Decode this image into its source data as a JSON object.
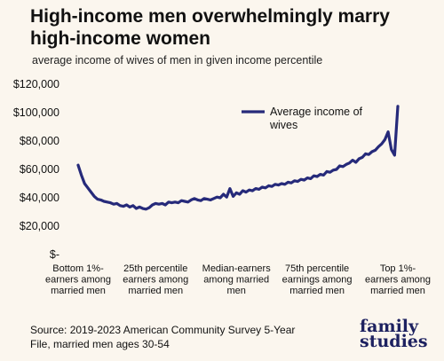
{
  "title": "High-income men overwhelmingly marry high-income women",
  "subtitle": "average income of wives of men in given income percentile",
  "source": "Source: 2019-2023 American Community Survey 5-Year File, married men ages 30-54",
  "brand": {
    "line1": "family",
    "line2": "studies"
  },
  "colors": {
    "background": "#fbf6ee",
    "line": "#262a7a",
    "brand": "#1d2160"
  },
  "chart_data": {
    "type": "line",
    "title": "High-income men overwhelmingly marry high-income women",
    "subtitle": "average income of wives of men in given income percentile",
    "xlabel": "",
    "ylabel": "",
    "ylim": [
      0,
      120000
    ],
    "yticks": [
      0,
      20000,
      40000,
      60000,
      80000,
      100000,
      120000
    ],
    "ytick_labels": [
      "$-",
      "$20,000",
      "$40,000",
      "$60,000",
      "$80,000",
      "$100,000",
      "$120,000"
    ],
    "x_categories": [
      {
        "x": 1,
        "label": [
          "Bottom 1%-",
          "earners among",
          "married men"
        ]
      },
      {
        "x": 25,
        "label": [
          "25th percentile",
          "earners among",
          "married men"
        ]
      },
      {
        "x": 50,
        "label": [
          "Median-earners",
          "among married",
          "men"
        ]
      },
      {
        "x": 75,
        "label": [
          "75th percentile",
          "earnings among",
          "married men"
        ]
      },
      {
        "x": 100,
        "label": [
          "Top 1%-",
          "earners among",
          "married men"
        ]
      }
    ],
    "grid": false,
    "legend": {
      "placement": "top-center",
      "entries": [
        "Average income of wives"
      ]
    },
    "series": [
      {
        "name": "Average income of wives",
        "color": "#262a7a",
        "x": [
          1,
          2,
          3,
          4,
          5,
          6,
          7,
          8,
          9,
          10,
          11,
          12,
          13,
          14,
          15,
          16,
          17,
          18,
          19,
          20,
          21,
          22,
          23,
          24,
          25,
          26,
          27,
          28,
          29,
          30,
          31,
          32,
          33,
          34,
          35,
          36,
          37,
          38,
          39,
          40,
          41,
          42,
          43,
          44,
          45,
          46,
          47,
          48,
          49,
          50,
          51,
          52,
          53,
          54,
          55,
          56,
          57,
          58,
          59,
          60,
          61,
          62,
          63,
          64,
          65,
          66,
          67,
          68,
          69,
          70,
          71,
          72,
          73,
          74,
          75,
          76,
          77,
          78,
          79,
          80,
          81,
          82,
          83,
          84,
          85,
          86,
          87,
          88,
          89,
          90,
          91,
          92,
          93,
          94,
          95,
          96,
          97,
          98,
          99,
          100
        ],
        "values": [
          63000,
          56000,
          50000,
          47000,
          44000,
          41000,
          39000,
          38500,
          37500,
          37000,
          36500,
          35500,
          36000,
          34500,
          34000,
          35000,
          33500,
          34500,
          32500,
          33500,
          32500,
          32000,
          33000,
          35000,
          36000,
          35500,
          36000,
          35000,
          37000,
          36500,
          37000,
          36500,
          38000,
          37500,
          37000,
          38500,
          39500,
          38500,
          38000,
          39500,
          39000,
          38500,
          39500,
          40500,
          40000,
          42500,
          40500,
          46500,
          41000,
          43500,
          42500,
          45000,
          44000,
          45500,
          45000,
          46500,
          46000,
          47500,
          47000,
          48500,
          48000,
          49500,
          49000,
          50000,
          49500,
          51000,
          50500,
          52000,
          51500,
          53000,
          52500,
          54000,
          53500,
          55500,
          55000,
          56500,
          56000,
          58500,
          58000,
          59500,
          60000,
          62500,
          62000,
          63500,
          64500,
          66500,
          65000,
          67500,
          68500,
          71000,
          70500,
          72500,
          73500,
          76000,
          78000,
          81000,
          86500,
          74000,
          70000,
          104500
        ]
      }
    ]
  }
}
